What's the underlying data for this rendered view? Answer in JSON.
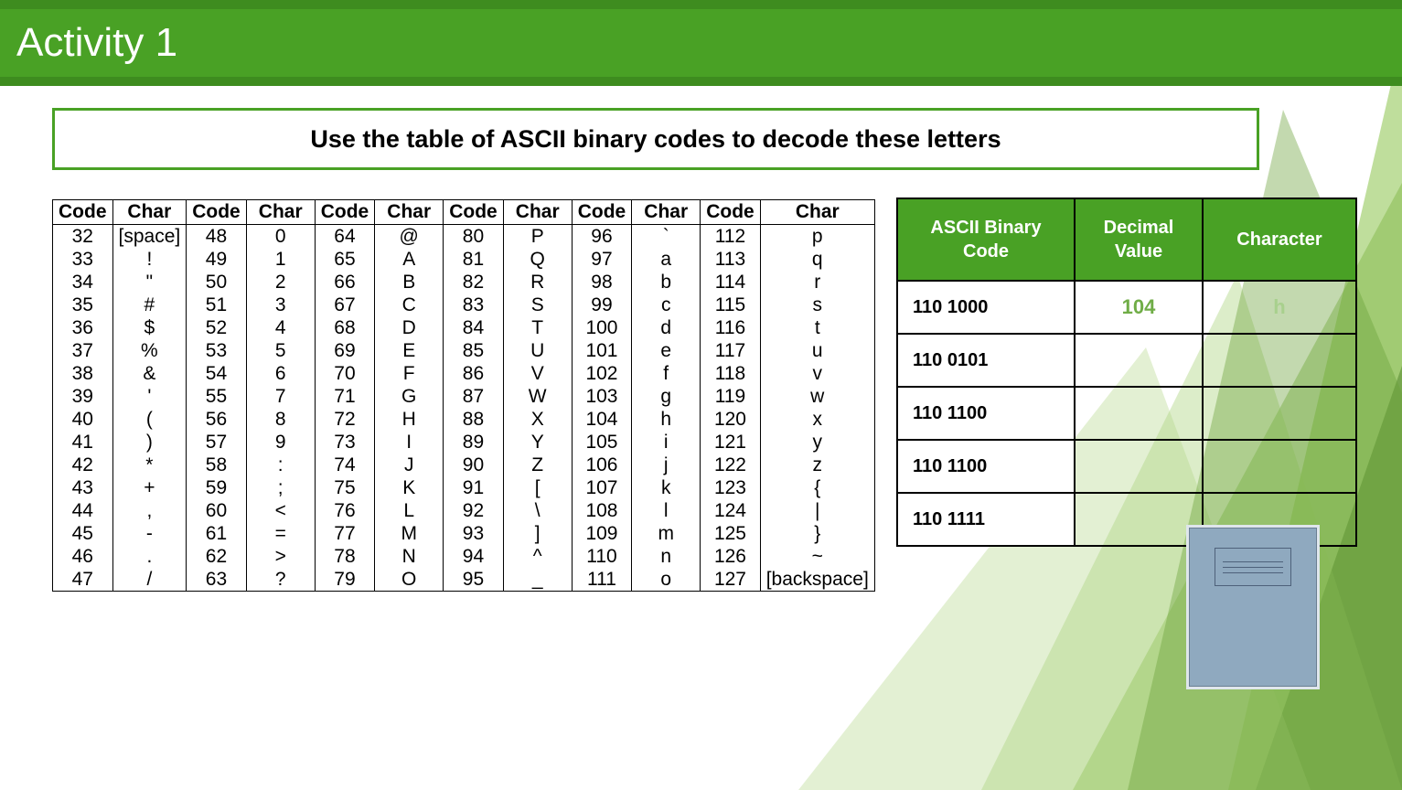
{
  "title": "Activity 1",
  "instruction": "Use the table of ASCII binary codes to decode these letters",
  "ascii_table": {
    "headers": [
      "Code",
      "Char",
      "Code",
      "Char",
      "Code",
      "Char",
      "Code",
      "Char",
      "Code",
      "Char",
      "Code",
      "Char"
    ],
    "rows": [
      [
        "32",
        "[space]",
        "48",
        "0",
        "64",
        "@",
        "80",
        "P",
        "96",
        "`",
        "112",
        "p"
      ],
      [
        "33",
        "!",
        "49",
        "1",
        "65",
        "A",
        "81",
        "Q",
        "97",
        "a",
        "113",
        "q"
      ],
      [
        "34",
        "\"",
        "50",
        "2",
        "66",
        "B",
        "82",
        "R",
        "98",
        "b",
        "114",
        "r"
      ],
      [
        "35",
        "#",
        "51",
        "3",
        "67",
        "C",
        "83",
        "S",
        "99",
        "c",
        "115",
        "s"
      ],
      [
        "36",
        "$",
        "52",
        "4",
        "68",
        "D",
        "84",
        "T",
        "100",
        "d",
        "116",
        "t"
      ],
      [
        "37",
        "%",
        "53",
        "5",
        "69",
        "E",
        "85",
        "U",
        "101",
        "e",
        "117",
        "u"
      ],
      [
        "38",
        "&",
        "54",
        "6",
        "70",
        "F",
        "86",
        "V",
        "102",
        "f",
        "118",
        "v"
      ],
      [
        "39",
        "'",
        "55",
        "7",
        "71",
        "G",
        "87",
        "W",
        "103",
        "g",
        "119",
        "w"
      ],
      [
        "40",
        "(",
        "56",
        "8",
        "72",
        "H",
        "88",
        "X",
        "104",
        "h",
        "120",
        "x"
      ],
      [
        "41",
        ")",
        "57",
        "9",
        "73",
        "I",
        "89",
        "Y",
        "105",
        "i",
        "121",
        "y"
      ],
      [
        "42",
        "*",
        "58",
        ":",
        "74",
        "J",
        "90",
        "Z",
        "106",
        "j",
        "122",
        "z"
      ],
      [
        "43",
        "+",
        "59",
        ";",
        "75",
        "K",
        "91",
        "[",
        "107",
        "k",
        "123",
        "{"
      ],
      [
        "44",
        ",",
        "60",
        "<",
        "76",
        "L",
        "92",
        "\\",
        "108",
        "l",
        "124",
        "|"
      ],
      [
        "45",
        "-",
        "61",
        "=",
        "77",
        "M",
        "93",
        "]",
        "109",
        "m",
        "125",
        "}"
      ],
      [
        "46",
        ".",
        "62",
        ">",
        "78",
        "N",
        "94",
        "^",
        "110",
        "n",
        "126",
        "~"
      ],
      [
        "47",
        "/",
        "63",
        "?",
        "79",
        "O",
        "95",
        "_",
        "111",
        "o",
        "127",
        "[backspace]"
      ]
    ]
  },
  "answer_table": {
    "headers": [
      "ASCII Binary Code",
      "Decimal Value",
      "Character"
    ],
    "rows": [
      {
        "binary": "110  1000",
        "decimal": "104",
        "char": "h"
      },
      {
        "binary": "110  0101",
        "decimal": "",
        "char": ""
      },
      {
        "binary": "110  1100",
        "decimal": "",
        "char": ""
      },
      {
        "binary": "110 1100",
        "decimal": "",
        "char": ""
      },
      {
        "binary": "110 1111",
        "decimal": "",
        "char": ""
      }
    ]
  },
  "colors": {
    "header_green": "#49a125",
    "header_border": "#3e8c1f",
    "answer_green": "#70ad47",
    "answer_green_light": "#a8d08d",
    "white": "#ffffff",
    "black": "#000000",
    "notebook_fill": "#8fa9bf"
  }
}
